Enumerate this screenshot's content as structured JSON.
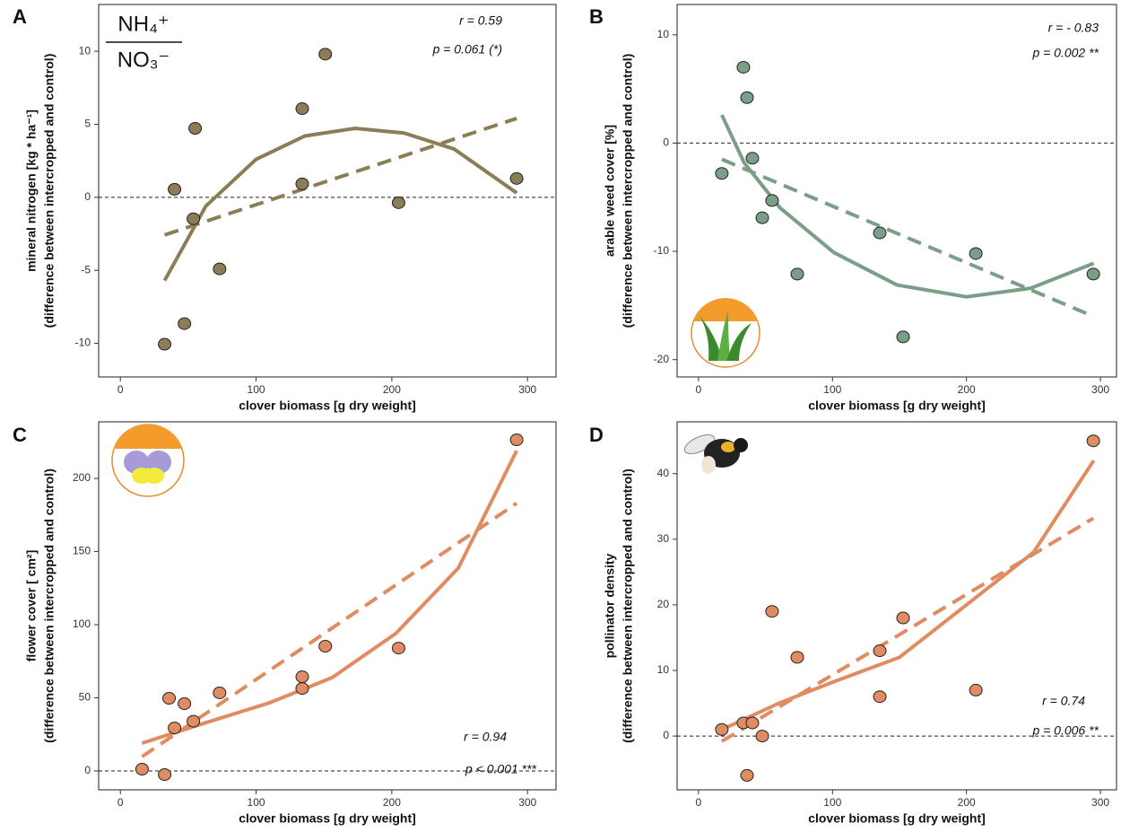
{
  "chart_data": [
    {
      "type": "scatter",
      "panel": "A",
      "xlabel": "clover biomass [g dry weight]",
      "ylabel": [
        "mineral nitrogen [kg * ha⁻¹]",
        "(difference between intercropped and control)"
      ],
      "annotations": [
        "r = 0.59",
        "p = 0.061 (*)"
      ],
      "inset_numerator": "NH₄⁺",
      "inset_denominator": "NO₃⁻",
      "color": "#8b7d55",
      "xlim": [
        -16,
        321
      ],
      "ylim": [
        -12.3,
        13.2
      ],
      "xticks": [
        0,
        100,
        200,
        300
      ],
      "yticks": [
        -10,
        -5,
        0,
        5,
        10
      ],
      "hline": 0,
      "points": {
        "x": [
          32.6,
          47.2,
          39.9,
          53.8,
          55.1,
          73.1,
          134,
          134,
          151,
          205,
          292
        ],
        "values": [
          -10.06,
          -8.65,
          0.55,
          -1.47,
          4.72,
          -4.9,
          6.07,
          0.92,
          9.8,
          -0.37,
          1.29
        ]
      },
      "linear_fit": {
        "x": [
          32.6,
          292
        ],
        "values": [
          -2.58,
          5.4
        ]
      },
      "curve_fit": {
        "x": [
          32.6,
          63,
          100,
          136,
          173,
          209,
          246,
          292
        ],
        "values": [
          -5.7,
          -0.6,
          2.6,
          4.2,
          4.72,
          4.4,
          3.3,
          0.3
        ]
      }
    },
    {
      "type": "scatter",
      "panel": "B",
      "xlabel": "clover biomass [g dry weight]",
      "ylabel": [
        "arable weed cover [%]",
        "(difference between intercropped and control)"
      ],
      "annotations": [
        "r = - 0.83",
        "p = 0.002 **"
      ],
      "color": "#7a9e87",
      "xlim": [
        -16,
        312
      ],
      "ylim": [
        -21.6,
        12.8
      ],
      "xticks": [
        0,
        100,
        200,
        300
      ],
      "yticks": [
        -20,
        -10,
        0,
        10
      ],
      "hline": 0,
      "points": {
        "x": [
          17.4,
          33.5,
          36.2,
          40.2,
          54.9,
          47.6,
          73.7,
          135.3,
          152.7,
          207,
          294.7
        ],
        "values": [
          -2.8,
          7.0,
          4.2,
          -1.4,
          -5.3,
          -6.9,
          -12.1,
          -8.3,
          -17.9,
          -10.2,
          -12.1
        ]
      },
      "linear_fit": {
        "x": [
          17.4,
          294.7
        ],
        "values": [
          -1.5,
          -16
        ]
      },
      "curve_fit": {
        "x": [
          17.4,
          34,
          61,
          101,
          148,
          200,
          248,
          295
        ],
        "values": [
          2.6,
          -1.8,
          -6,
          -10.1,
          -13.1,
          -14.2,
          -13.4,
          -11.1
        ]
      }
    },
    {
      "type": "scatter",
      "panel": "C",
      "xlabel": "clover biomass [g dry weight]",
      "ylabel": [
        "flower cover [ cm²]",
        "(difference between intercropped and control)"
      ],
      "annotations": [
        "r = 0.94",
        "p < 0.001 ***"
      ],
      "color": "#e08c62",
      "xlim": [
        -16,
        321
      ],
      "ylim": [
        -12.9,
        238.7
      ],
      "xticks": [
        0,
        100,
        200,
        300
      ],
      "yticks": [
        0,
        50,
        100,
        150,
        200
      ],
      "hline": 0,
      "points": {
        "x": [
          16,
          32.6,
          35.9,
          39.9,
          47.2,
          53.8,
          73.1,
          134,
          134,
          151,
          205,
          292
        ],
        "values": [
          1.2,
          -2.5,
          49.7,
          29.4,
          46,
          34,
          53.4,
          64.4,
          56.4,
          85.3,
          84,
          226.4
        ]
      },
      "linear_fit": {
        "x": [
          16,
          292
        ],
        "values": [
          9.8,
          183
        ]
      },
      "curve_fit": {
        "x": [
          16,
          63,
          110,
          156,
          203,
          249,
          292
        ],
        "values": [
          19,
          33,
          46.6,
          63.8,
          94,
          138.7,
          219
        ]
      }
    },
    {
      "type": "scatter",
      "panel": "D",
      "xlabel": "clover biomass [g dry weight]",
      "ylabel": [
        "pollinator density",
        "(difference between intercropped and control)"
      ],
      "annotations": [
        "r = 0.74",
        "p = 0.006 **"
      ],
      "color": "#e08c62",
      "xlim": [
        -16,
        312
      ],
      "ylim": [
        -8.2,
        47.9
      ],
      "xticks": [
        0,
        100,
        200,
        300
      ],
      "yticks": [
        0,
        10,
        20,
        30,
        40
      ],
      "hline": 0,
      "points": {
        "x": [
          17.4,
          33.5,
          40.2,
          47.6,
          36.2,
          54.9,
          73.7,
          135.3,
          135.3,
          152.7,
          207,
          294.7
        ],
        "values": [
          1,
          2,
          2,
          0,
          -6,
          19,
          12,
          13,
          6,
          18,
          7,
          45
        ]
      },
      "linear_fit": {
        "x": [
          17.4,
          294.7
        ],
        "values": [
          -0.8,
          33.2
        ]
      },
      "curve_fit": {
        "x": [
          17.4,
          60,
          100,
          150,
          200,
          250,
          295
        ],
        "values": [
          1,
          5,
          8.2,
          12,
          20,
          28,
          42
        ]
      }
    }
  ]
}
